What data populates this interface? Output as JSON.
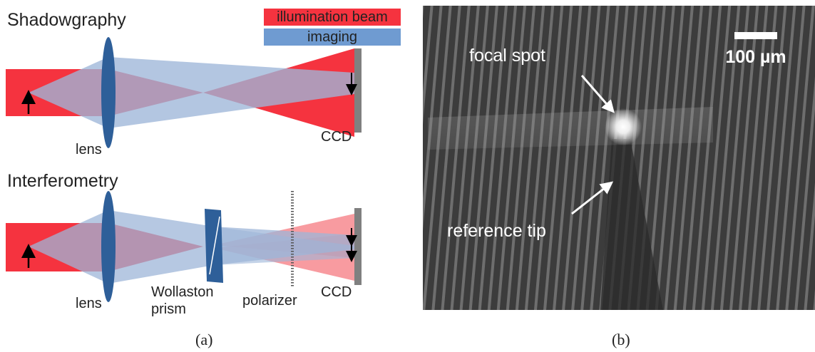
{
  "panel_a": {
    "shadowgraphy": {
      "title": "Shadowgraphy",
      "lens": "lens",
      "ccd": "CCD"
    },
    "legend": {
      "illumination": "illumination beam",
      "imaging": "imaging"
    },
    "interferometry": {
      "title": "Interferometry",
      "lens": "lens",
      "prism": [
        "Wollaston",
        "prism"
      ],
      "polarizer": "polarizer",
      "ccd": "CCD"
    },
    "caption": "(a)"
  },
  "panel_b": {
    "focal_spot": "focal spot",
    "scale_bar": "100 µm",
    "reference_tip": "reference tip",
    "caption": "(b)"
  }
}
